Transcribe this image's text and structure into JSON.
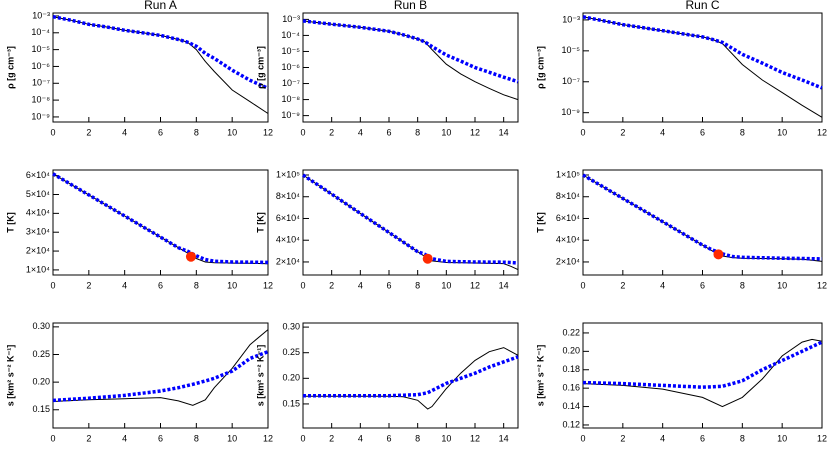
{
  "chart_data": [
    {
      "type": "line",
      "title": "Run A",
      "ylabel": "ρ [g cm⁻³]",
      "yscale": "log",
      "x": [
        0,
        1,
        2,
        3,
        4,
        5,
        6,
        7,
        7.5,
        8,
        8.5,
        9,
        10,
        11,
        12
      ],
      "series": [
        {
          "color": "#000000",
          "style": "solid",
          "values": [
            0.0009,
            0.00056,
            0.00032,
            0.00022,
            0.00014,
            0.0001,
            7e-05,
            4e-05,
            2.8e-05,
            1e-05,
            2e-06,
            5e-07,
            4e-08,
            8e-09,
            1.6e-09
          ]
        },
        {
          "color": "#0000ff",
          "style": "dotted",
          "values": [
            0.0009,
            0.00056,
            0.00032,
            0.00022,
            0.00014,
            0.0001,
            7e-05,
            4e-05,
            2.8e-05,
            1.6e-05,
            6e-06,
            3e-06,
            6e-07,
            1.5e-07,
            5e-08
          ]
        }
      ],
      "xlim": [
        0,
        12
      ],
      "xticks": [
        0,
        2,
        4,
        6,
        8,
        10,
        12
      ],
      "ylim": [
        5e-10,
        0.0015
      ],
      "yticks": [
        {
          "value": 1e-09,
          "label": "10⁻⁹"
        },
        {
          "value": 1e-08,
          "label": "10⁻⁸"
        },
        {
          "value": 1e-07,
          "label": "10⁻⁷"
        },
        {
          "value": 1e-06,
          "label": "10⁻⁶"
        },
        {
          "value": 1e-05,
          "label": "10⁻⁵"
        },
        {
          "value": 0.0001,
          "label": "10⁻⁴"
        },
        {
          "value": 0.001,
          "label": "10⁻³"
        }
      ]
    },
    {
      "type": "line",
      "title": "Run B",
      "ylabel": "ρ [g cm⁻³]",
      "yscale": "log",
      "x": [
        0,
        2,
        4,
        6,
        7,
        8,
        8.5,
        9,
        10,
        11,
        12,
        13,
        14,
        15
      ],
      "series": [
        {
          "color": "#000000",
          "style": "solid",
          "values": [
            0.0008,
            0.0005,
            0.00032,
            0.00018,
            0.00011,
            6e-05,
            4e-05,
            1.3e-05,
            1.6e-06,
            4e-07,
            1.3e-07,
            5e-08,
            2e-08,
            1e-08
          ]
        },
        {
          "color": "#0000ff",
          "style": "dotted",
          "values": [
            0.0008,
            0.0005,
            0.00032,
            0.00018,
            0.00011,
            6e-05,
            4e-05,
            2e-05,
            6e-06,
            2.5e-06,
            1e-06,
            5e-07,
            2.5e-07,
            1.3e-07
          ]
        }
      ],
      "xlim": [
        0,
        15
      ],
      "xticks": [
        0,
        2,
        4,
        6,
        8,
        10,
        12,
        14
      ],
      "ylim": [
        4e-10,
        0.0025
      ],
      "yticks": [
        {
          "value": 1e-09,
          "label": "10⁻⁹"
        },
        {
          "value": 1e-08,
          "label": "10⁻⁸"
        },
        {
          "value": 1e-07,
          "label": "10⁻⁷"
        },
        {
          "value": 1e-06,
          "label": "10⁻⁶"
        },
        {
          "value": 1e-05,
          "label": "10⁻⁵"
        },
        {
          "value": 0.0001,
          "label": "10⁻⁴"
        },
        {
          "value": 0.001,
          "label": "10⁻³"
        }
      ]
    },
    {
      "type": "line",
      "title": "Run C",
      "ylabel": "ρ [g cm⁻³]",
      "yscale": "log",
      "x": [
        0,
        2,
        4,
        6,
        6.5,
        7,
        8,
        9,
        10,
        11,
        12
      ],
      "series": [
        {
          "color": "#000000",
          "style": "solid",
          "values": [
            0.0016,
            0.0005,
            0.0002,
            8e-05,
            5.5e-05,
            3e-05,
            1.3e-06,
            1.3e-07,
            2e-08,
            3e-09,
            5e-10
          ]
        },
        {
          "color": "#0000ff",
          "style": "dotted",
          "values": [
            0.0016,
            0.0005,
            0.0002,
            8e-05,
            5.5e-05,
            3.5e-05,
            6e-06,
            1.6e-06,
            4e-07,
            1.3e-07,
            4e-08
          ]
        }
      ],
      "xlim": [
        0,
        12
      ],
      "xticks": [
        0,
        2,
        4,
        6,
        8,
        10,
        12
      ],
      "ylim": [
        2.5e-10,
        0.0028
      ],
      "yticks": [
        {
          "value": 1e-09,
          "label": "10⁻⁹"
        },
        {
          "value": 1e-07,
          "label": "10⁻⁷"
        },
        {
          "value": 1e-05,
          "label": "10⁻⁵"
        },
        {
          "value": 0.001,
          "label": "10⁻³"
        }
      ]
    },
    {
      "type": "line",
      "ylabel": "T [K]",
      "x": [
        0,
        2,
        4,
        6,
        7,
        7.5,
        8,
        8.5,
        9,
        10,
        11,
        12
      ],
      "series": [
        {
          "color": "#000000",
          "style": "solid",
          "values": [
            61000,
            49800,
            38600,
            27400,
            21800,
            19000,
            16000,
            14200,
            13800,
            13600,
            13500,
            13300
          ]
        },
        {
          "color": "#0000ff",
          "style": "dotted",
          "values": [
            61000,
            49800,
            38600,
            27400,
            21800,
            20000,
            17500,
            15500,
            14600,
            14200,
            14100,
            14000
          ]
        }
      ],
      "markers": [
        {
          "x": 7.7,
          "y": 17000,
          "color": "#ff2a00"
        }
      ],
      "xlim": [
        0,
        12
      ],
      "xticks": [
        0,
        2,
        4,
        6,
        8,
        10,
        12
      ],
      "ylim": [
        7300,
        63000
      ],
      "yticks": [
        {
          "value": 10000,
          "label": "1×10⁴"
        },
        {
          "value": 20000,
          "label": "2×10⁴"
        },
        {
          "value": 30000,
          "label": "3×10⁴"
        },
        {
          "value": 40000,
          "label": "4×10⁴"
        },
        {
          "value": 50000,
          "label": "5×10⁴"
        },
        {
          "value": 60000,
          "label": "6×10⁴"
        }
      ]
    },
    {
      "type": "line",
      "ylabel": "T [K]",
      "x": [
        0,
        2,
        4,
        6,
        8,
        8.5,
        9,
        10,
        12,
        14,
        14.5,
        15
      ],
      "series": [
        {
          "color": "#000000",
          "style": "solid",
          "values": [
            100000,
            82400,
            64700,
            47100,
            29400,
            25000,
            21000,
            19500,
            19000,
            18500,
            16000,
            13000
          ]
        },
        {
          "color": "#0000ff",
          "style": "dotted",
          "values": [
            100000,
            82400,
            64700,
            47100,
            29400,
            27000,
            23000,
            20500,
            20000,
            19800,
            19500,
            19000
          ]
        }
      ],
      "markers": [
        {
          "x": 8.7,
          "y": 23000,
          "color": "#ff2a00"
        }
      ],
      "xlim": [
        0,
        15
      ],
      "xticks": [
        0,
        2,
        4,
        6,
        8,
        10,
        12,
        14
      ],
      "ylim": [
        8000,
        104600
      ],
      "yticks": [
        {
          "value": 20000,
          "label": "2×10⁴"
        },
        {
          "value": 40000,
          "label": "4×10⁴"
        },
        {
          "value": 60000,
          "label": "6×10⁴"
        },
        {
          "value": 80000,
          "label": "8×10⁴"
        },
        {
          "value": 100000,
          "label": "1×10⁵"
        }
      ]
    },
    {
      "type": "line",
      "ylabel": "T [K]",
      "x": [
        0,
        2,
        4,
        6,
        6.5,
        7,
        7.5,
        8,
        10,
        11,
        11.5,
        12
      ],
      "series": [
        {
          "color": "#000000",
          "style": "solid",
          "values": [
            100000,
            78500,
            57000,
            35500,
            30100,
            25500,
            24000,
            23500,
            23000,
            22500,
            21500,
            20500
          ]
        },
        {
          "color": "#0000ff",
          "style": "dotted",
          "values": [
            100000,
            78500,
            57000,
            35500,
            31000,
            27500,
            25000,
            24300,
            23500,
            23200,
            23000,
            22800
          ]
        }
      ],
      "markers": [
        {
          "x": 6.8,
          "y": 27000,
          "color": "#ff2a00"
        }
      ],
      "xlim": [
        0,
        12
      ],
      "xticks": [
        0,
        2,
        4,
        6,
        8,
        10,
        12
      ],
      "ylim": [
        8000,
        104600
      ],
      "yticks": [
        {
          "value": 20000,
          "label": "2×10⁴"
        },
        {
          "value": 40000,
          "label": "4×10⁴"
        },
        {
          "value": 60000,
          "label": "6×10⁴"
        },
        {
          "value": 80000,
          "label": "8×10⁴"
        },
        {
          "value": 100000,
          "label": "1×10⁵"
        }
      ]
    },
    {
      "type": "line",
      "ylabel": "s [km² s⁻² K⁻¹]",
      "x": [
        0,
        2,
        4,
        6,
        7,
        7.8,
        8.5,
        9,
        10,
        11,
        12
      ],
      "series": [
        {
          "color": "#000000",
          "style": "solid",
          "values": [
            0.165,
            0.168,
            0.17,
            0.172,
            0.166,
            0.158,
            0.168,
            0.19,
            0.225,
            0.268,
            0.295
          ]
        },
        {
          "color": "#0000ff",
          "style": "dotted",
          "values": [
            0.167,
            0.171,
            0.176,
            0.184,
            0.19,
            0.196,
            0.202,
            0.207,
            0.22,
            0.243,
            0.255
          ]
        }
      ],
      "xlim": [
        0,
        12
      ],
      "xticks": [
        0,
        2,
        4,
        6,
        8,
        10,
        12
      ],
      "ylim": [
        0.117,
        0.307
      ],
      "yticks": [
        0.15,
        {
          "value": 0.2,
          "label": "0.20"
        },
        0.25,
        {
          "value": 0.3,
          "label": "0.30"
        }
      ]
    },
    {
      "type": "line",
      "ylabel": "s [km² s⁻² K⁻¹]",
      "x": [
        0,
        2,
        4,
        6,
        7,
        8,
        8.7,
        9,
        10,
        11,
        12,
        13,
        14,
        15
      ],
      "series": [
        {
          "color": "#000000",
          "style": "solid",
          "values": [
            0.165,
            0.165,
            0.165,
            0.165,
            0.164,
            0.157,
            0.14,
            0.145,
            0.18,
            0.21,
            0.235,
            0.252,
            0.26,
            0.245
          ]
        },
        {
          "color": "#0000ff",
          "style": "dotted",
          "values": [
            0.166,
            0.166,
            0.166,
            0.166,
            0.167,
            0.168,
            0.172,
            0.176,
            0.19,
            0.2,
            0.21,
            0.222,
            0.232,
            0.242
          ]
        }
      ],
      "xlim": [
        0,
        15
      ],
      "xticks": [
        0,
        2,
        4,
        6,
        8,
        10,
        12,
        14
      ],
      "ylim": [
        0.103,
        0.308
      ],
      "yticks": [
        0.15,
        {
          "value": 0.2,
          "label": "0.20"
        },
        0.25,
        {
          "value": 0.3,
          "label": "0.30"
        }
      ]
    },
    {
      "type": "line",
      "ylabel": "s [km² s⁻² K⁻¹]",
      "x": [
        0,
        2,
        4,
        6,
        7,
        8,
        9,
        10,
        11,
        11.5,
        12
      ],
      "series": [
        {
          "color": "#000000",
          "style": "solid",
          "values": [
            0.165,
            0.163,
            0.159,
            0.15,
            0.14,
            0.15,
            0.17,
            0.195,
            0.21,
            0.213,
            0.211
          ]
        },
        {
          "color": "#0000ff",
          "style": "dotted",
          "values": [
            0.166,
            0.165,
            0.163,
            0.161,
            0.162,
            0.168,
            0.18,
            0.19,
            0.2,
            0.205,
            0.21
          ]
        }
      ],
      "xlim": [
        0,
        12
      ],
      "xticks": [
        0,
        2,
        4,
        6,
        8,
        10,
        12
      ],
      "ylim": [
        0.1167,
        0.2308
      ],
      "yticks": [
        0.12,
        0.14,
        0.16,
        0.18,
        {
          "value": 0.2,
          "label": "0.20"
        },
        0.22
      ]
    }
  ]
}
